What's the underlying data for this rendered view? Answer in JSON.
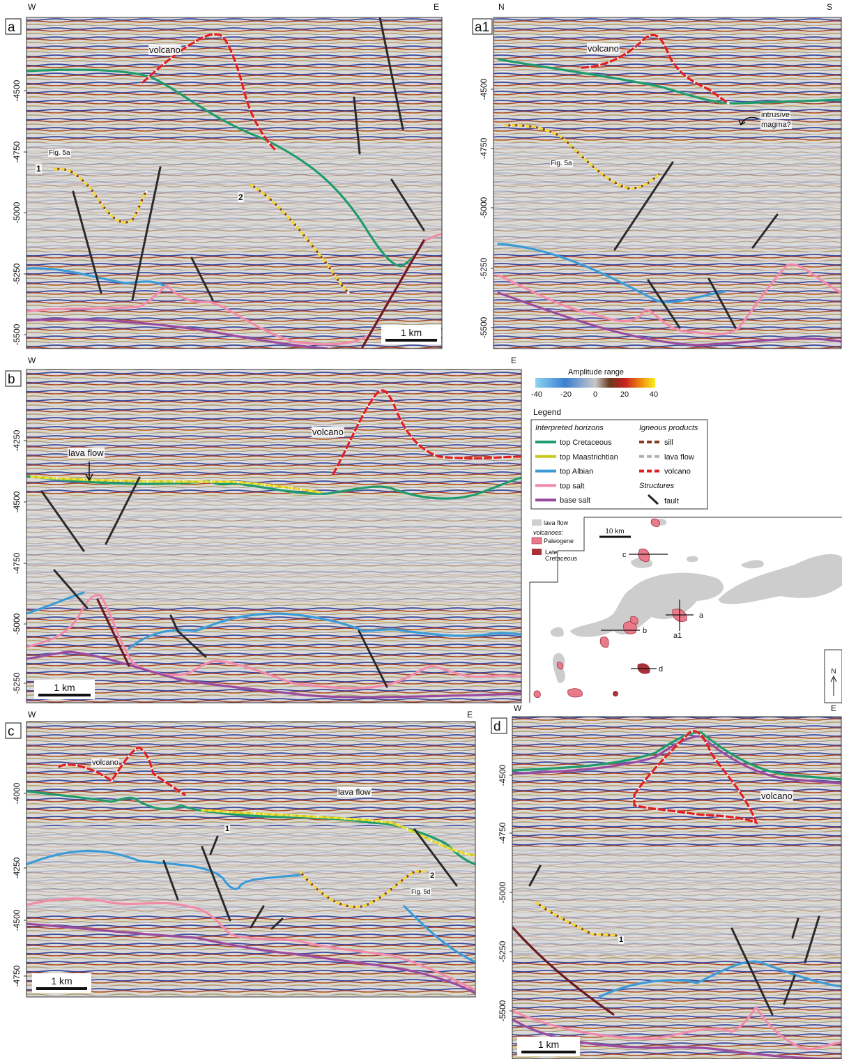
{
  "panels": [
    {
      "letter": "a",
      "ends": [
        "W",
        "E"
      ],
      "depth_ticks": [
        "-4500",
        "-4750",
        "-5000",
        "-5250",
        "-5500"
      ],
      "annotations": [
        "volcano",
        "Fig. 5a",
        "1",
        "2"
      ],
      "scale": "1 km"
    },
    {
      "letter": "a1",
      "ends": [
        "N",
        "S"
      ],
      "depth_ticks": [
        "-4500",
        "-4750",
        "-5000",
        "-5250",
        "-5500"
      ],
      "annotations": [
        "volcano",
        "intrusive",
        "magma?",
        "Fig. 5a"
      ]
    },
    {
      "letter": "b",
      "ends": [
        "W",
        "E"
      ],
      "depth_ticks": [
        "-4250",
        "-4500",
        "-4750",
        "-5000",
        "-5250"
      ],
      "annotations": [
        "volcano",
        "lava flow"
      ],
      "scale": "1 km"
    },
    {
      "letter": "c",
      "ends": [
        "W",
        "E"
      ],
      "depth_ticks": [
        "-4000",
        "-4250",
        "-4500",
        "-4750"
      ],
      "annotations": [
        "volcano",
        "lava flow",
        "1",
        "2",
        "Fig. 5d"
      ],
      "scale": "1 km"
    },
    {
      "letter": "d",
      "ends": [
        "W",
        "E"
      ],
      "depth_ticks": [
        "-4500",
        "-4750",
        "-5000",
        "-5250",
        "-5500"
      ],
      "annotations": [
        "volcano",
        "1"
      ],
      "scale": "1 km"
    }
  ],
  "amplitude": {
    "title": "Amplitude range",
    "ticks": [
      "-40",
      "-20",
      "0",
      "20",
      "40"
    ]
  },
  "legend": {
    "title": "Legend",
    "horizons_title": "Interpreted horizons",
    "horizons": [
      "top Cretaceous",
      "top Maastrichtian",
      "top Albian",
      "top salt",
      "base salt"
    ],
    "igneous_title": "Igneous products",
    "igneous": [
      "sill",
      "lava flow",
      "volcano"
    ],
    "structures_title": "Structures",
    "structures": [
      "fault"
    ]
  },
  "map": {
    "legend": [
      "lava flow",
      "volcanoes:",
      "Paleogene",
      "Late",
      "Cretaceous"
    ],
    "scale": "10 km",
    "sections": [
      "a",
      "a1",
      "b",
      "c",
      "d"
    ],
    "north": "N"
  }
}
